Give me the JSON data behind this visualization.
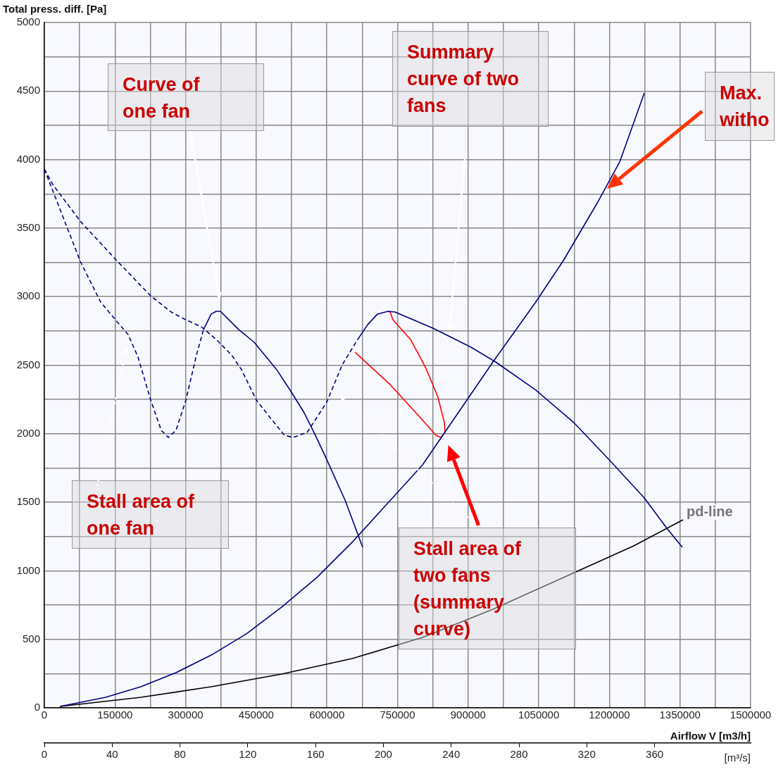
{
  "chart_data": {
    "type": "line",
    "ylabel": "Total press. diff. [Pa]",
    "xlabel": "Airflow V [m3/h]",
    "x2label": "[m³/s]",
    "xlim": [
      0,
      1500000
    ],
    "ylim": [
      0,
      5000
    ],
    "x2lim": [
      0,
      416.67
    ],
    "xticks": [
      0,
      {
        "value": 75000,
        "label": null
      },
      150000,
      {
        "value": 225000,
        "label": null
      },
      300000,
      {
        "value": 375000,
        "label": null
      },
      450000,
      {
        "value": 525000,
        "label": null
      },
      600000,
      {
        "value": 675000,
        "label": null
      },
      750000,
      {
        "value": 825000,
        "label": null
      },
      900000,
      {
        "value": 975000,
        "label": null
      },
      1050000,
      {
        "value": 1125000,
        "label": null
      },
      1200000,
      {
        "value": 1275000,
        "label": null
      },
      1350000,
      {
        "value": 1425000,
        "label": null
      },
      1500000
    ],
    "yticks": [
      0,
      {
        "value": 250,
        "label": null
      },
      500,
      {
        "value": 750,
        "label": null
      },
      1000,
      {
        "value": 1250,
        "label": null
      },
      1500,
      {
        "value": 1750,
        "label": null
      },
      2000,
      {
        "value": 2250,
        "label": null
      },
      2500,
      {
        "value": 2750,
        "label": null
      },
      3000,
      {
        "value": 3250,
        "label": null
      },
      3500,
      {
        "value": 3750,
        "label": null
      },
      4000,
      {
        "value": 4250,
        "label": null
      },
      4500,
      {
        "value": 4750,
        "label": null
      },
      5000
    ],
    "x2ticks": [
      0,
      40,
      80,
      120,
      160,
      200,
      240,
      280,
      320,
      360
    ],
    "grid": true,
    "marker": "none",
    "series": [
      {
        "color": "#000080",
        "line_style": "dashed",
        "x": [
          0,
          76270,
          119640,
          151050,
          177970,
          198900,
          225820,
          248250,
          263200,
          279650,
          300590,
          323020,
          337980
        ],
        "values": [
          3930,
          3258,
          2960,
          2831,
          2723,
          2559,
          2246,
          2025,
          1973,
          2025,
          2246,
          2574,
          2760
        ]
      },
      {
        "color": "#000080",
        "line_style": "solid",
        "x": [
          337980,
          354430,
          364900,
          373900,
          412760,
          445660,
          493500,
          524900,
          551840,
          572780,
          595210,
          638580,
          675970
        ],
        "values": [
          2760,
          2873,
          2893,
          2893,
          2760,
          2667,
          2467,
          2302,
          2153,
          2009,
          1845,
          1516,
          1172
        ]
      },
      {
        "color": "#000080",
        "line_style": "dashed",
        "x": [
          0,
          17950,
          76270,
          151050,
          225820,
          269190,
          300590,
          333490,
          364900,
          397800,
          418740,
          450150,
          483050,
          509960,
          527900,
          557820,
          599700,
          632600,
          665500
        ],
        "values": [
          3930,
          3818,
          3551,
          3273,
          3006,
          2888,
          2831,
          2780,
          2688,
          2574,
          2467,
          2246,
          2102,
          1989,
          1973,
          2009,
          2230,
          2503,
          2688
        ]
      },
      {
        "color": "#000080",
        "line_style": "solid",
        "x": [
          665500,
          686400,
          707400,
          729800,
          744760,
          825500,
          906300,
          958600,
          1043900,
          1124600,
          1205400,
          1274200,
          1322000,
          1354900
        ],
        "values": [
          2688,
          2795,
          2873,
          2893,
          2888,
          2770,
          2631,
          2523,
          2318,
          2081,
          1788,
          1531,
          1310,
          1172
        ]
      },
      {
        "color": "#000080",
        "line_style": "solid",
        "x": [
          32900,
          130100,
          204900,
          279700,
          354400,
          429200,
          504000,
          578800,
          653600,
          728400,
          803200,
          952600,
          1042400,
          1102200,
          1177000,
          1221800,
          1274200
        ],
        "values": [
          10,
          77,
          154,
          257,
          385,
          540,
          735,
          951,
          1208,
          1490,
          1773,
          2523,
          2955,
          3263,
          3700,
          3983,
          4486
        ]
      },
      {
        "name": "pd-line",
        "color": "#000000",
        "line_style": "solid",
        "x": [
          32900,
          204900,
          354400,
          504000,
          653600,
          803200,
          952600,
          1102200,
          1251700,
          1356400
        ],
        "values": [
          10,
          77,
          154,
          247,
          360,
          514,
          719,
          951,
          1182,
          1372
        ]
      },
      {
        "color": "#ff0000",
        "line_style": "solid",
        "x": [
          729800,
          734300,
          740300,
          777700,
          809100,
          836000,
          849500,
          851000
        ],
        "values": [
          2893,
          2888,
          2831,
          2688,
          2487,
          2266,
          2081,
          2009
        ]
      },
      {
        "color": "#ff0000",
        "line_style": "solid",
        "x": [
          659500,
          734300,
          798600,
          831500,
          842000,
          851000
        ],
        "values": [
          2595,
          2359,
          2117,
          1989,
          1973,
          2009
        ]
      }
    ],
    "annotations": [
      "Curve of one fan",
      "Summary curve of two fans",
      "Max. witho",
      "Stall area of one fan",
      "Stall area of two fans (summary curve)"
    ]
  }
}
